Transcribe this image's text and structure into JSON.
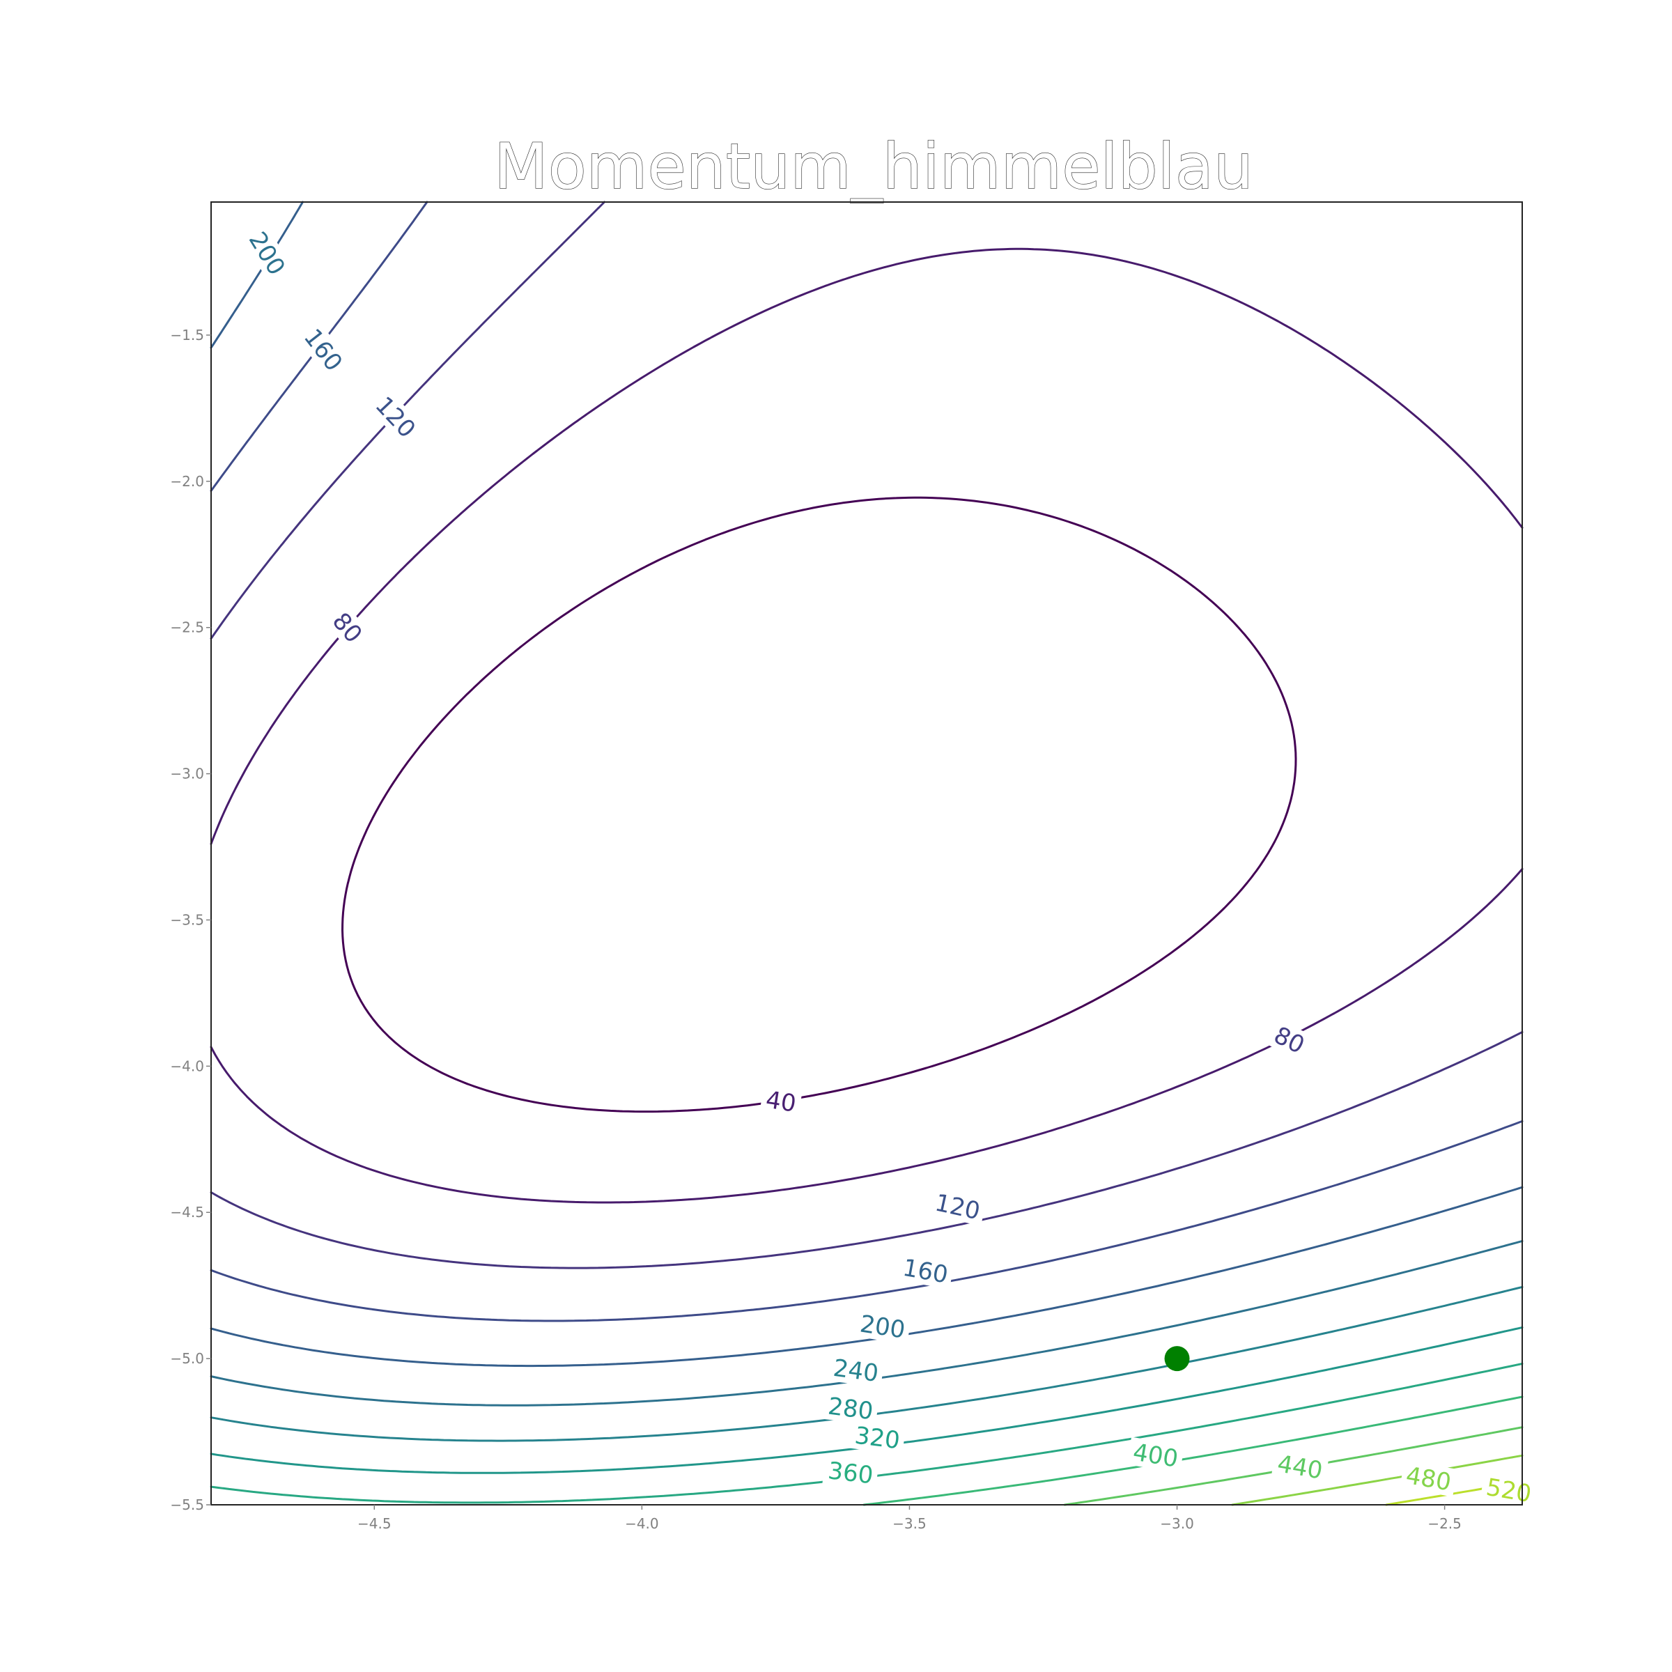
{
  "chart_data": {
    "type": "contour",
    "title": "Momentum_himmelblau",
    "function": "himmelblau",
    "xlim": [
      -4.805,
      -2.355
    ],
    "ylim": [
      -5.5,
      -1.045
    ],
    "x_ticks": [
      -4.5,
      -4.0,
      -3.5,
      -3.0,
      -2.5
    ],
    "x_tick_labels": [
      "−4.5",
      "−4.0",
      "−3.5",
      "−3.0",
      "−2.5"
    ],
    "y_ticks": [
      -1.5,
      -2.0,
      -2.5,
      -3.0,
      -3.5,
      -4.0,
      -4.5,
      -5.0,
      -5.5
    ],
    "y_tick_labels": [
      "−1.5",
      "−2.0",
      "−2.5",
      "−3.0",
      "−3.5",
      "−4.0",
      "−4.5",
      "−5.0",
      "−5.5"
    ],
    "levels": [
      40,
      80,
      120,
      160,
      200,
      240,
      280,
      320,
      360,
      400,
      440,
      480,
      520
    ],
    "colormap": "viridis",
    "contour_labels": [
      {
        "text": "200",
        "x": -4.7,
        "y": -1.22,
        "color": "#2c728e"
      },
      {
        "text": "160",
        "x": -4.595,
        "y": -1.55,
        "color": "#33628d"
      },
      {
        "text": "120",
        "x": -4.46,
        "y": -1.78,
        "color": "#3b528b"
      },
      {
        "text": "80",
        "x": -4.55,
        "y": -2.5,
        "color": "#433e85"
      },
      {
        "text": "40",
        "x": -3.74,
        "y": -4.12,
        "color": "#481f71"
      },
      {
        "text": "80",
        "x": -2.79,
        "y": -3.91,
        "color": "#433e85"
      },
      {
        "text": "120",
        "x": -3.41,
        "y": -4.48,
        "color": "#3b528b"
      },
      {
        "text": "160",
        "x": -3.47,
        "y": -4.7,
        "color": "#33628d"
      },
      {
        "text": "200",
        "x": -3.55,
        "y": -4.89,
        "color": "#2c728e"
      },
      {
        "text": "240",
        "x": -3.6,
        "y": -5.04,
        "color": "#26828e"
      },
      {
        "text": "280",
        "x": -3.61,
        "y": -5.17,
        "color": "#21918c"
      },
      {
        "text": "320",
        "x": -3.56,
        "y": -5.27,
        "color": "#1fa088"
      },
      {
        "text": "360",
        "x": -3.61,
        "y": -5.39,
        "color": "#28ae80"
      },
      {
        "text": "400",
        "x": -3.04,
        "y": -5.33,
        "color": "#3fbc73"
      },
      {
        "text": "440",
        "x": -2.77,
        "y": -5.37,
        "color": "#5ec962"
      },
      {
        "text": "480",
        "x": -2.53,
        "y": -5.41,
        "color": "#84d44b"
      },
      {
        "text": "520",
        "x": -2.38,
        "y": -5.45,
        "color": "#addc30"
      }
    ],
    "marker": {
      "x": -3.0,
      "y": -5.0,
      "color": "#008000"
    },
    "grid": false,
    "colors": {
      "axes": "#222222",
      "ticks": "#808080"
    }
  }
}
